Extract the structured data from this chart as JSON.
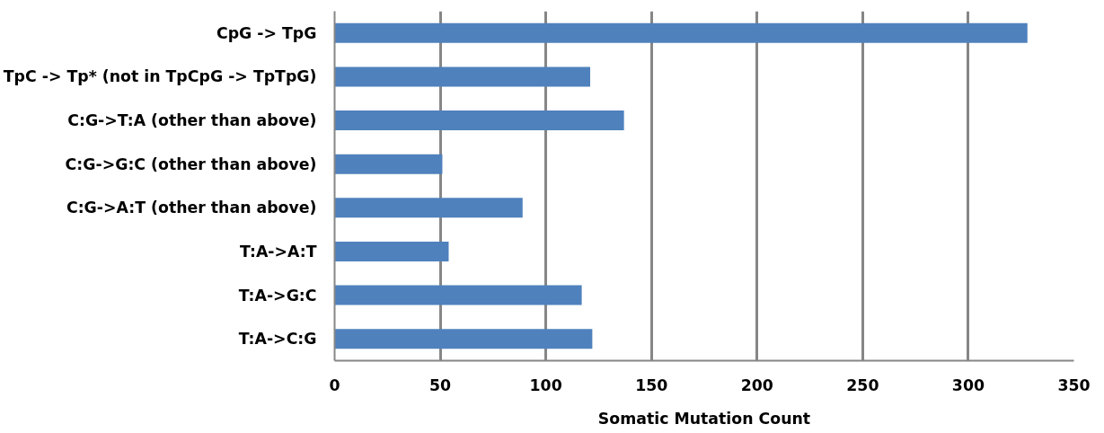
{
  "chart_data": {
    "type": "bar",
    "orientation": "horizontal",
    "xlabel": "Somatic Mutation Count",
    "categories": [
      "CpG -> TpG",
      "TpC -> Tp* (not in TpCpG -> TpTpG)",
      "C:G->T:A (other than above)",
      "C:G->G:C (other than above)",
      "C:G->A:T (other than above)",
      "T:A->A:T",
      "T:A->G:C",
      "T:A->C:G"
    ],
    "values": [
      328,
      121,
      137,
      51,
      89,
      54,
      117,
      122
    ],
    "color": "#4f81bd",
    "xlim": [
      0,
      350
    ],
    "xticks": [
      0,
      50,
      100,
      150,
      200,
      250,
      300,
      350
    ],
    "grid": "x"
  }
}
